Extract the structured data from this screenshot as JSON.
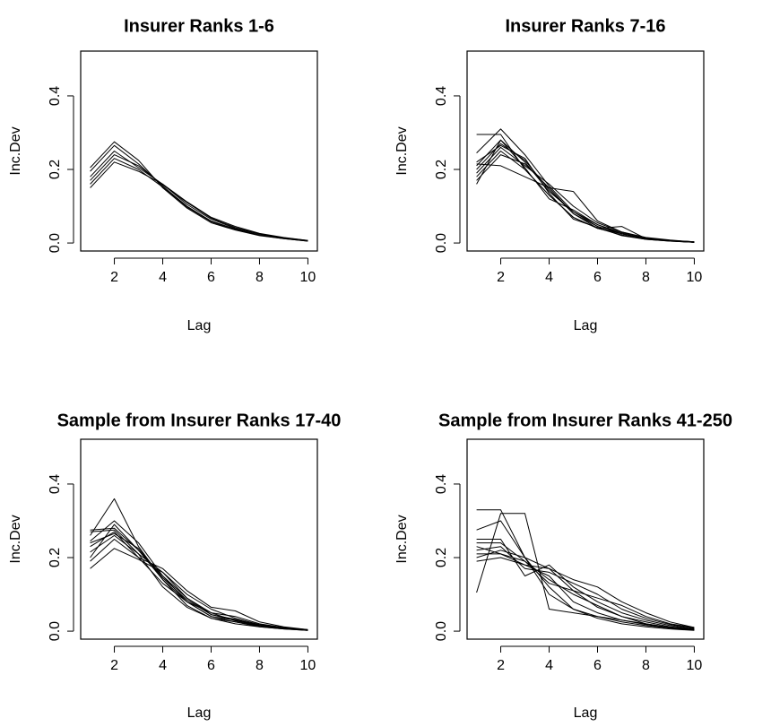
{
  "chart_data": [
    {
      "type": "line",
      "title": "Insurer Ranks 1-6",
      "xlabel": "Lag",
      "ylabel": "Inc.Dev",
      "xlim": [
        1,
        10
      ],
      "ylim": [
        0,
        0.5
      ],
      "xticks": [
        2,
        4,
        6,
        8,
        10
      ],
      "yticks": [
        0.0,
        0.2,
        0.4
      ],
      "ytick_labels": [
        "0.0",
        "0.2",
        "0.4"
      ],
      "x": [
        1,
        2,
        3,
        4,
        5,
        6,
        7,
        8,
        9,
        10
      ],
      "grid": false,
      "series": [
        {
          "values": [
            0.205,
            0.275,
            0.225,
            0.15,
            0.095,
            0.055,
            0.035,
            0.02,
            0.012,
            0.005
          ]
        },
        {
          "values": [
            0.195,
            0.265,
            0.215,
            0.155,
            0.1,
            0.06,
            0.038,
            0.022,
            0.013,
            0.006
          ]
        },
        {
          "values": [
            0.18,
            0.25,
            0.205,
            0.16,
            0.105,
            0.065,
            0.04,
            0.024,
            0.014,
            0.006
          ]
        },
        {
          "values": [
            0.17,
            0.24,
            0.21,
            0.158,
            0.11,
            0.068,
            0.042,
            0.025,
            0.014,
            0.007
          ]
        },
        {
          "values": [
            0.16,
            0.23,
            0.2,
            0.152,
            0.098,
            0.058,
            0.036,
            0.021,
            0.012,
            0.005
          ]
        },
        {
          "values": [
            0.15,
            0.22,
            0.195,
            0.16,
            0.112,
            0.07,
            0.045,
            0.026,
            0.015,
            0.007
          ]
        }
      ]
    },
    {
      "type": "line",
      "title": "Insurer Ranks 7-16",
      "xlabel": "Lag",
      "ylabel": "Inc.Dev",
      "xlim": [
        1,
        10
      ],
      "ylim": [
        0,
        0.5
      ],
      "xticks": [
        2,
        4,
        6,
        8,
        10
      ],
      "yticks": [
        0.0,
        0.2,
        0.4
      ],
      "ytick_labels": [
        "0.0",
        "0.2",
        "0.4"
      ],
      "x": [
        1,
        2,
        3,
        4,
        5,
        6,
        7,
        8,
        9,
        10
      ],
      "grid": false,
      "series": [
        {
          "values": [
            0.295,
            0.295,
            0.2,
            0.13,
            0.07,
            0.04,
            0.025,
            0.012,
            0.006,
            0.002
          ]
        },
        {
          "values": [
            0.245,
            0.31,
            0.24,
            0.155,
            0.085,
            0.045,
            0.025,
            0.012,
            0.006,
            0.002
          ]
        },
        {
          "values": [
            0.21,
            0.28,
            0.22,
            0.14,
            0.085,
            0.05,
            0.028,
            0.014,
            0.007,
            0.003
          ]
        },
        {
          "values": [
            0.2,
            0.27,
            0.225,
            0.145,
            0.08,
            0.045,
            0.025,
            0.012,
            0.006,
            0.002
          ]
        },
        {
          "values": [
            0.19,
            0.26,
            0.21,
            0.16,
            0.1,
            0.055,
            0.03,
            0.015,
            0.008,
            0.003
          ]
        },
        {
          "values": [
            0.18,
            0.25,
            0.2,
            0.13,
            0.07,
            0.04,
            0.045,
            0.012,
            0.006,
            0.002
          ]
        },
        {
          "values": [
            0.17,
            0.24,
            0.215,
            0.15,
            0.14,
            0.06,
            0.03,
            0.014,
            0.007,
            0.003
          ]
        },
        {
          "values": [
            0.16,
            0.28,
            0.205,
            0.12,
            0.09,
            0.05,
            0.025,
            0.012,
            0.006,
            0.002
          ]
        },
        {
          "values": [
            0.215,
            0.21,
            0.18,
            0.15,
            0.08,
            0.04,
            0.022,
            0.01,
            0.005,
            0.002
          ]
        },
        {
          "values": [
            0.22,
            0.265,
            0.23,
            0.135,
            0.065,
            0.042,
            0.02,
            0.01,
            0.005,
            0.002
          ]
        }
      ]
    },
    {
      "type": "line",
      "title": "Sample from Insurer Ranks 17-40",
      "xlabel": "Lag",
      "ylabel": "Inc.Dev",
      "xlim": [
        1,
        10
      ],
      "ylim": [
        0,
        0.5
      ],
      "xticks": [
        2,
        4,
        6,
        8,
        10
      ],
      "yticks": [
        0.0,
        0.2,
        0.4
      ],
      "ytick_labels": [
        "0.0",
        "0.2",
        "0.4"
      ],
      "x": [
        1,
        2,
        3,
        4,
        5,
        6,
        7,
        8,
        9,
        10
      ],
      "grid": false,
      "series": [
        {
          "values": [
            0.275,
            0.28,
            0.22,
            0.15,
            0.09,
            0.045,
            0.03,
            0.018,
            0.01,
            0.003
          ]
        },
        {
          "values": [
            0.26,
            0.36,
            0.23,
            0.14,
            0.08,
            0.04,
            0.025,
            0.014,
            0.008,
            0.002
          ]
        },
        {
          "values": [
            0.245,
            0.3,
            0.24,
            0.15,
            0.08,
            0.05,
            0.028,
            0.015,
            0.008,
            0.003
          ]
        },
        {
          "values": [
            0.23,
            0.27,
            0.2,
            0.17,
            0.11,
            0.065,
            0.055,
            0.025,
            0.012,
            0.004
          ]
        },
        {
          "values": [
            0.215,
            0.26,
            0.21,
            0.16,
            0.1,
            0.06,
            0.035,
            0.018,
            0.009,
            0.003
          ]
        },
        {
          "values": [
            0.2,
            0.29,
            0.22,
            0.14,
            0.07,
            0.035,
            0.02,
            0.012,
            0.006,
            0.002
          ]
        },
        {
          "values": [
            0.19,
            0.25,
            0.2,
            0.13,
            0.08,
            0.04,
            0.03,
            0.015,
            0.008,
            0.003
          ]
        },
        {
          "values": [
            0.17,
            0.225,
            0.195,
            0.16,
            0.09,
            0.05,
            0.04,
            0.02,
            0.01,
            0.004
          ]
        },
        {
          "values": [
            0.27,
            0.275,
            0.21,
            0.12,
            0.065,
            0.035,
            0.025,
            0.012,
            0.006,
            0.002
          ]
        },
        {
          "values": [
            0.24,
            0.265,
            0.225,
            0.145,
            0.085,
            0.045,
            0.032,
            0.016,
            0.008,
            0.003
          ]
        }
      ]
    },
    {
      "type": "line",
      "title": "Sample from Insurer Ranks 41-250",
      "xlabel": "Lag",
      "ylabel": "Inc.Dev",
      "xlim": [
        1,
        10
      ],
      "ylim": [
        0,
        0.5
      ],
      "xticks": [
        2,
        4,
        6,
        8,
        10
      ],
      "yticks": [
        0.0,
        0.2,
        0.4
      ],
      "ytick_labels": [
        "0.0",
        "0.2",
        "0.4"
      ],
      "x": [
        1,
        2,
        3,
        4,
        5,
        6,
        7,
        8,
        9,
        10
      ],
      "grid": false,
      "series": [
        {
          "values": [
            0.33,
            0.33,
            0.2,
            0.17,
            0.11,
            0.065,
            0.04,
            0.025,
            0.012,
            0.005
          ]
        },
        {
          "values": [
            0.105,
            0.32,
            0.32,
            0.06,
            0.05,
            0.04,
            0.03,
            0.02,
            0.01,
            0.004
          ]
        },
        {
          "values": [
            0.275,
            0.3,
            0.2,
            0.1,
            0.06,
            0.035,
            0.02,
            0.012,
            0.006,
            0.002
          ]
        },
        {
          "values": [
            0.25,
            0.25,
            0.15,
            0.18,
            0.12,
            0.08,
            0.05,
            0.03,
            0.015,
            0.006
          ]
        },
        {
          "values": [
            0.24,
            0.24,
            0.19,
            0.14,
            0.1,
            0.07,
            0.04,
            0.02,
            0.01,
            0.004
          ]
        },
        {
          "values": [
            0.22,
            0.23,
            0.17,
            0.16,
            0.13,
            0.1,
            0.06,
            0.035,
            0.018,
            0.008
          ]
        },
        {
          "values": [
            0.21,
            0.21,
            0.18,
            0.15,
            0.08,
            0.05,
            0.03,
            0.018,
            0.009,
            0.004
          ]
        },
        {
          "values": [
            0.2,
            0.22,
            0.2,
            0.12,
            0.06,
            0.04,
            0.025,
            0.015,
            0.008,
            0.003
          ]
        },
        {
          "values": [
            0.19,
            0.2,
            0.18,
            0.17,
            0.14,
            0.12,
            0.08,
            0.05,
            0.025,
            0.01
          ]
        },
        {
          "values": [
            0.23,
            0.21,
            0.19,
            0.13,
            0.11,
            0.09,
            0.07,
            0.04,
            0.02,
            0.01
          ]
        }
      ]
    }
  ]
}
